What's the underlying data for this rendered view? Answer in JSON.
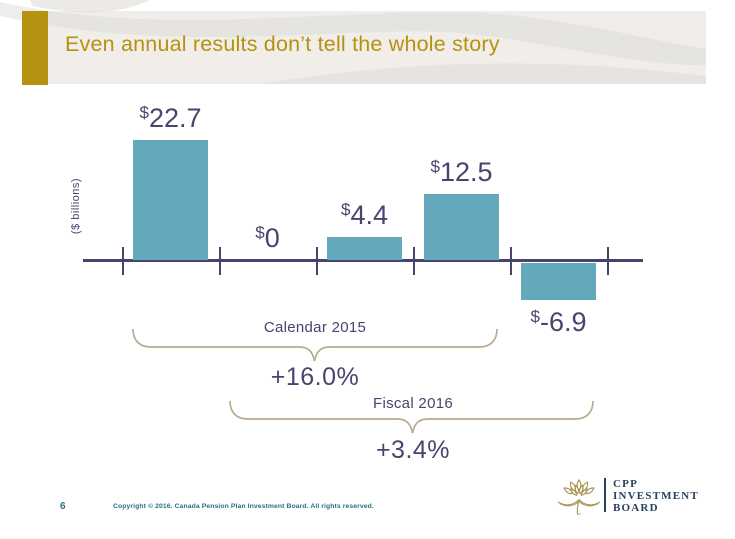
{
  "header": {
    "title": "Even annual results don’t tell the whole story"
  },
  "chart_data": {
    "type": "bar",
    "title": "",
    "xlabel": "",
    "ylabel": "($ billions)",
    "unit": "$ billions",
    "axis_color": "#45456e",
    "bar_color": "#63a8bb",
    "ylim": [
      -6.9,
      22.7
    ],
    "grid": false,
    "bars": [
      {
        "prefix": "$",
        "amount": "22.7",
        "value": 22.7
      },
      {
        "prefix": "$",
        "amount": "0",
        "value": 0
      },
      {
        "prefix": "$",
        "amount": "4.4",
        "value": 4.4
      },
      {
        "prefix": "$",
        "amount": "12.5",
        "value": 12.5
      },
      {
        "prefix": "$",
        "amount": "-6.9",
        "value": -6.9
      }
    ],
    "annotations": [
      {
        "label": "Calendar 2015",
        "value": "+16.0%",
        "spans_bars": [
          0,
          3
        ]
      },
      {
        "label": "Fiscal 2016",
        "value": "+3.4%",
        "spans_bars": [
          1,
          4
        ]
      }
    ],
    "brace_color": "#b8ab8e"
  },
  "footer": {
    "page_number": "6",
    "copyright": "Copyright © 2016. Canada Pension Plan Investment Board. All rights reserved.",
    "logo": {
      "line1": "CPP",
      "line2": "INVESTMENT",
      "line3": "BOARD"
    }
  }
}
